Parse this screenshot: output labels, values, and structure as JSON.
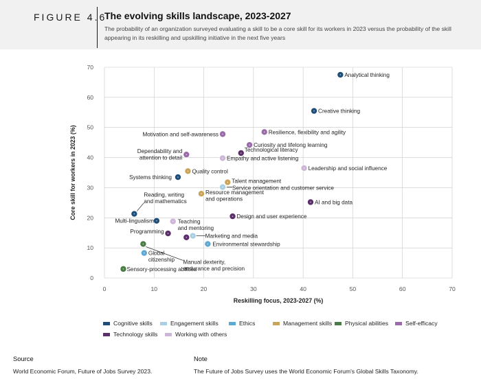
{
  "header": {
    "figure_label": "FIGURE 4.6",
    "title": "The evolving skills landscape, 2023-2027",
    "subtitle": "The probability of an organization surveyed evaluating a skill to be a core skill for its workers in 2023 versus the probability of the skill appearing in its reskilling and upskilling initiative in the next five years"
  },
  "colors": {
    "cognitive": "#1f4e79",
    "engagement": "#a9cfe3",
    "ethics": "#5ea8d4",
    "management": "#c9a45a",
    "physical": "#4a7c45",
    "self_efficacy": "#9b6aa8",
    "technology": "#5a2f6a",
    "working": "#cdb6d8"
  },
  "chart_data": {
    "type": "scatter",
    "xlabel": "Reskilling focus, 2023-2027 (%)",
    "ylabel": "Core skill for workers in 2023 (%)",
    "xlim": [
      0,
      70
    ],
    "ylim": [
      0,
      70
    ],
    "xticks": [
      "0",
      "10",
      "20",
      "30",
      "40",
      "50",
      "60",
      "70"
    ],
    "yticks": [
      "0",
      "10",
      "20",
      "30",
      "40",
      "50",
      "60",
      "70"
    ],
    "grid": true,
    "legend": [
      {
        "key": "cognitive",
        "label": "Cognitive skills"
      },
      {
        "key": "engagement",
        "label": "Engagement skills"
      },
      {
        "key": "ethics",
        "label": "Ethics"
      },
      {
        "key": "management",
        "label": "Management skills"
      },
      {
        "key": "physical",
        "label": "Physical abilities"
      },
      {
        "key": "self_efficacy",
        "label": "Self-efficacy"
      },
      {
        "key": "technology",
        "label": "Technology skills"
      },
      {
        "key": "working",
        "label": "Working with others"
      }
    ],
    "points": [
      {
        "label": "Analytical thinking",
        "x": 47.5,
        "y": 67.5,
        "cat": "cognitive"
      },
      {
        "label": "Creative thinking",
        "x": 42.2,
        "y": 55.5,
        "cat": "cognitive"
      },
      {
        "label": "Resilience, flexibility and agility",
        "x": 32.2,
        "y": 48.5,
        "cat": "self_efficacy"
      },
      {
        "label": "Motivation and self-awareness",
        "x": 23.8,
        "y": 47.8,
        "cat": "self_efficacy"
      },
      {
        "label": "Curiosity and lifelong learning",
        "x": 29.2,
        "y": 44.2,
        "cat": "self_efficacy"
      },
      {
        "label": "Technological literacy",
        "x": 27.5,
        "y": 41.5,
        "cat": "technology"
      },
      {
        "label": "Empathy and active listening",
        "x": 23.8,
        "y": 39.8,
        "cat": "working"
      },
      {
        "label": "Dependability and attention to detail",
        "x": 16.5,
        "y": 41.0,
        "cat": "self_efficacy"
      },
      {
        "label": "Leadership and social influence",
        "x": 40.2,
        "y": 36.5,
        "cat": "working"
      },
      {
        "label": "Quality control",
        "x": 16.8,
        "y": 35.5,
        "cat": "management"
      },
      {
        "label": "Systems thinking",
        "x": 14.8,
        "y": 33.5,
        "cat": "cognitive"
      },
      {
        "label": "Talent management",
        "x": 24.8,
        "y": 31.8,
        "cat": "management"
      },
      {
        "label": "Service orientation and customer service",
        "x": 23.8,
        "y": 30.2,
        "cat": "engagement"
      },
      {
        "label": "Resource management and operations",
        "x": 19.5,
        "y": 28.0,
        "cat": "management"
      },
      {
        "label": "AI and big data",
        "x": 41.5,
        "y": 25.2,
        "cat": "technology"
      },
      {
        "label": "Reading, writing and mathematics",
        "x": 6.0,
        "y": 21.3,
        "cat": "cognitive"
      },
      {
        "label": "Design and user experience",
        "x": 25.8,
        "y": 20.5,
        "cat": "technology"
      },
      {
        "label": "Multi-lingualism",
        "x": 10.5,
        "y": 19.0,
        "cat": "cognitive"
      },
      {
        "label": "Teaching and mentoring",
        "x": 13.8,
        "y": 18.8,
        "cat": "working"
      },
      {
        "label": "Programming",
        "x": 12.8,
        "y": 14.8,
        "cat": "technology"
      },
      {
        "label": "Marketing and media",
        "x": 17.8,
        "y": 14.0,
        "cat": "engagement"
      },
      {
        "label": "Environmental stewardship",
        "x": 20.8,
        "y": 11.3,
        "cat": "ethics"
      },
      {
        "label": "Manual dexterity, endurance and precision",
        "x": 7.8,
        "y": 11.3,
        "cat": "physical"
      },
      {
        "label": "Global citizenship",
        "x": 8.0,
        "y": 8.3,
        "cat": "ethics"
      },
      {
        "label": "Sensory-processing abilities",
        "x": 3.8,
        "y": 3.0,
        "cat": "physical"
      },
      {
        "label": "",
        "x": 16.5,
        "y": 13.5,
        "cat": "technology"
      }
    ]
  },
  "footer": {
    "source_heading": "Source",
    "source_text": "World Economic Forum, Future of Jobs Survey 2023.",
    "note_heading": "Note",
    "note_text": "The Future of Jobs Survey uses the World Economic Forum's Global Skills Taxonomy."
  }
}
